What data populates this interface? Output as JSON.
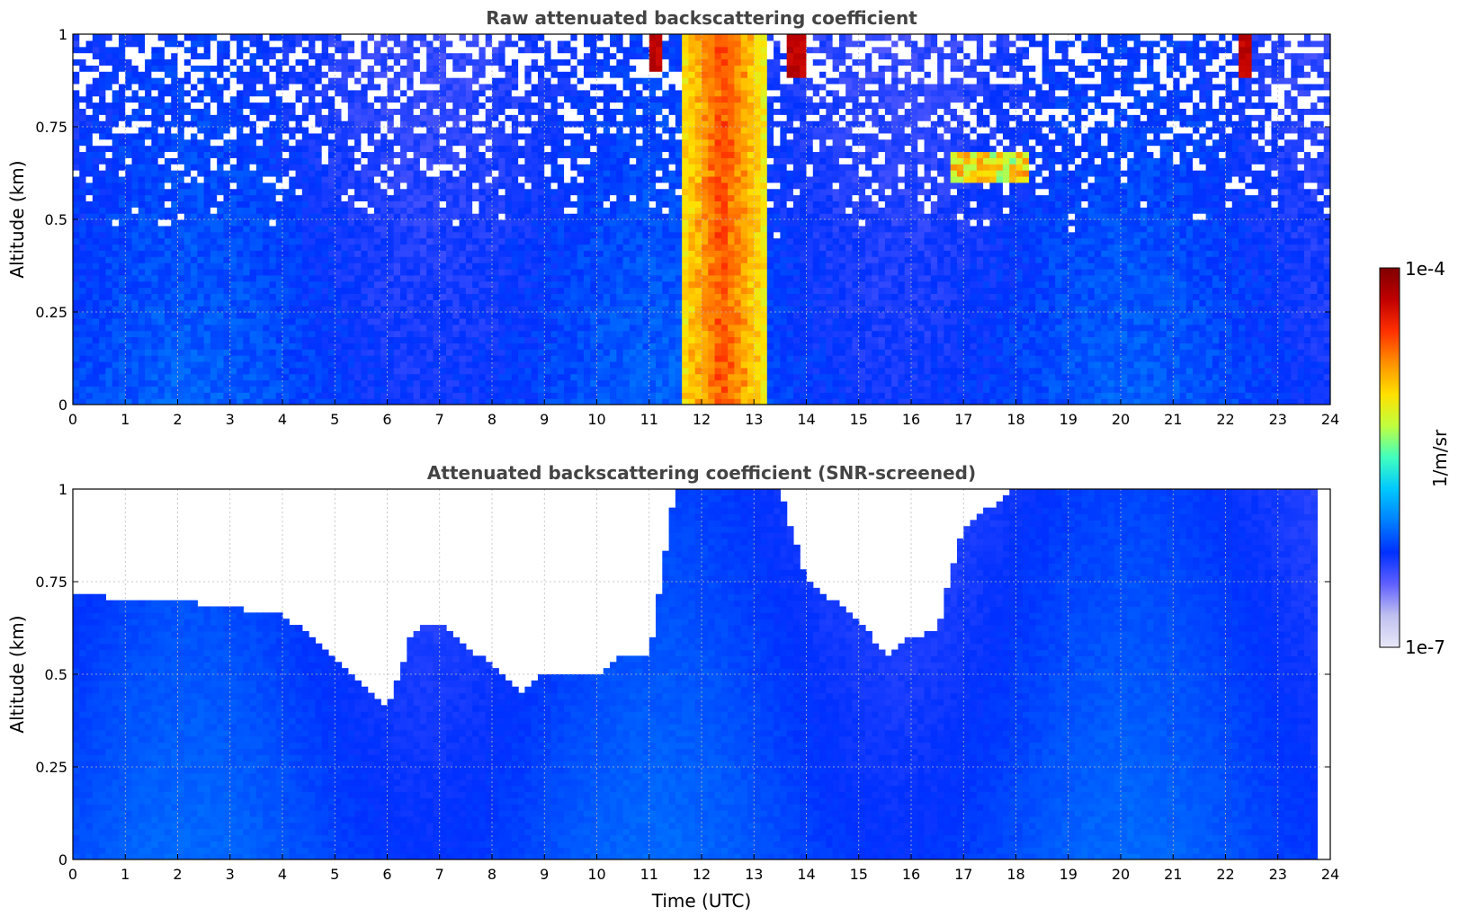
{
  "chart_data": [
    {
      "type": "heatmap",
      "title": "Raw attenuated backscattering coefficient",
      "xlabel": "",
      "ylabel": "Altitude (km)",
      "xlim": [
        0,
        24
      ],
      "ylim": [
        0,
        1
      ],
      "x_ticks": [
        "0",
        "1",
        "2",
        "3",
        "4",
        "5",
        "6",
        "7",
        "8",
        "9",
        "10",
        "11",
        "12",
        "13",
        "14",
        "15",
        "16",
        "17",
        "18",
        "19",
        "20",
        "21",
        "22",
        "23",
        "24"
      ],
      "y_ticks": [
        "0",
        "0.25",
        "0.5",
        "0.75",
        "1"
      ],
      "grid": true,
      "features": [
        {
          "label": "dense layer",
          "x_start": 11.6,
          "x_end": 13.2,
          "y_start": 0.0,
          "y_end": 1.0,
          "level": "high"
        },
        {
          "label": "elevated layer",
          "x_start": 16.8,
          "x_end": 18.3,
          "y_start": 0.6,
          "y_end": 0.68,
          "level": "high"
        },
        {
          "label": "high spot",
          "x_start": 11.0,
          "x_end": 11.3,
          "y_start": 0.9,
          "y_end": 1.0,
          "level": "max"
        },
        {
          "label": "high spot",
          "x_start": 13.6,
          "x_end": 14.0,
          "y_start": 0.88,
          "y_end": 1.0,
          "level": "max"
        },
        {
          "label": "high spot",
          "x_start": 22.3,
          "x_end": 22.5,
          "y_start": 0.88,
          "y_end": 1.0,
          "level": "max"
        }
      ]
    },
    {
      "type": "heatmap",
      "title": "Attenuated backscattering coefficient (SNR-screened)",
      "xlabel": "Time (UTC)",
      "ylabel": "Altitude (km)",
      "xlim": [
        0,
        24
      ],
      "ylim": [
        0,
        1
      ],
      "x_ticks": [
        "0",
        "1",
        "2",
        "3",
        "4",
        "5",
        "6",
        "7",
        "8",
        "9",
        "10",
        "11",
        "12",
        "13",
        "14",
        "15",
        "16",
        "17",
        "18",
        "19",
        "20",
        "21",
        "22",
        "23",
        "24"
      ],
      "y_ticks": [
        "0",
        "0.25",
        "0.5",
        "0.75",
        "1"
      ],
      "grid": true,
      "screened_top_km": [
        [
          0,
          0.72
        ],
        [
          1,
          0.7
        ],
        [
          2,
          0.7
        ],
        [
          3,
          0.68
        ],
        [
          4,
          0.66
        ],
        [
          5,
          0.55
        ],
        [
          5.5,
          0.48
        ],
        [
          6,
          0.4
        ],
        [
          6.5,
          0.62
        ],
        [
          7,
          0.64
        ],
        [
          7.5,
          0.58
        ],
        [
          8,
          0.52
        ],
        [
          8.5,
          0.45
        ],
        [
          9,
          0.5
        ],
        [
          9.5,
          0.5
        ],
        [
          10,
          0.5
        ],
        [
          10.5,
          0.55
        ],
        [
          11,
          0.55
        ],
        [
          11.5,
          1.0
        ],
        [
          13.5,
          1.0
        ],
        [
          14,
          0.75
        ],
        [
          14.5,
          0.7
        ],
        [
          15,
          0.65
        ],
        [
          15.5,
          0.55
        ],
        [
          16,
          0.6
        ],
        [
          16.5,
          0.62
        ],
        [
          17,
          0.9
        ],
        [
          18,
          1.0
        ],
        [
          23.8,
          1.0
        ]
      ]
    }
  ],
  "colorbar": {
    "max_label": "1e-4",
    "min_label": "1e-7",
    "units": "1/m/sr",
    "colors": [
      "#e8e8f8",
      "#c0c0f0",
      "#6060ff",
      "#0030ff",
      "#0080ff",
      "#00c8ff",
      "#40ffc0",
      "#c0ff40",
      "#ffe000",
      "#ff9000",
      "#ff3000",
      "#c00000",
      "#800000"
    ]
  }
}
